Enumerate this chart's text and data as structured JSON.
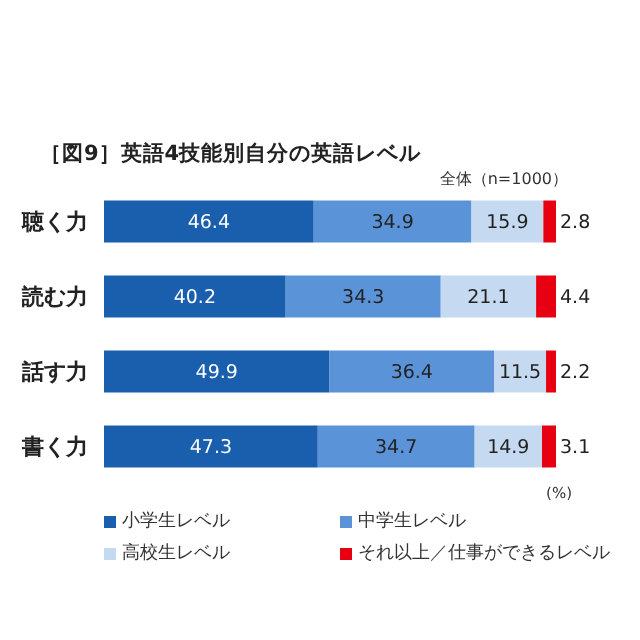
{
  "chart_data": {
    "type": "bar",
    "orientation": "horizontal",
    "stacked": true,
    "title": "［図9］英語4技能別自分の英語レベル",
    "annotations": [
      "全体（n=1000）"
    ],
    "xlabel": "(%)",
    "categories": [
      "聴く力",
      "読む力",
      "話す力",
      "書く力"
    ],
    "series": [
      {
        "name": "小学生レベル",
        "color": "#1a5fad",
        "values": [
          46.4,
          40.2,
          49.9,
          47.3
        ]
      },
      {
        "name": "中学生レベル",
        "color": "#5b93d8",
        "values": [
          34.9,
          34.3,
          36.4,
          34.7
        ]
      },
      {
        "name": "高校生レベル",
        "color": "#c5d9f1",
        "values": [
          15.9,
          21.1,
          11.5,
          14.9
        ]
      },
      {
        "name": "それ以上／仕事ができるレベル",
        "color": "#e60012",
        "values": [
          2.8,
          4.4,
          2.2,
          3.1
        ]
      }
    ],
    "xlim": [
      0,
      100
    ],
    "data_labels": true,
    "legend": "bottom",
    "tick_labels": "y"
  }
}
